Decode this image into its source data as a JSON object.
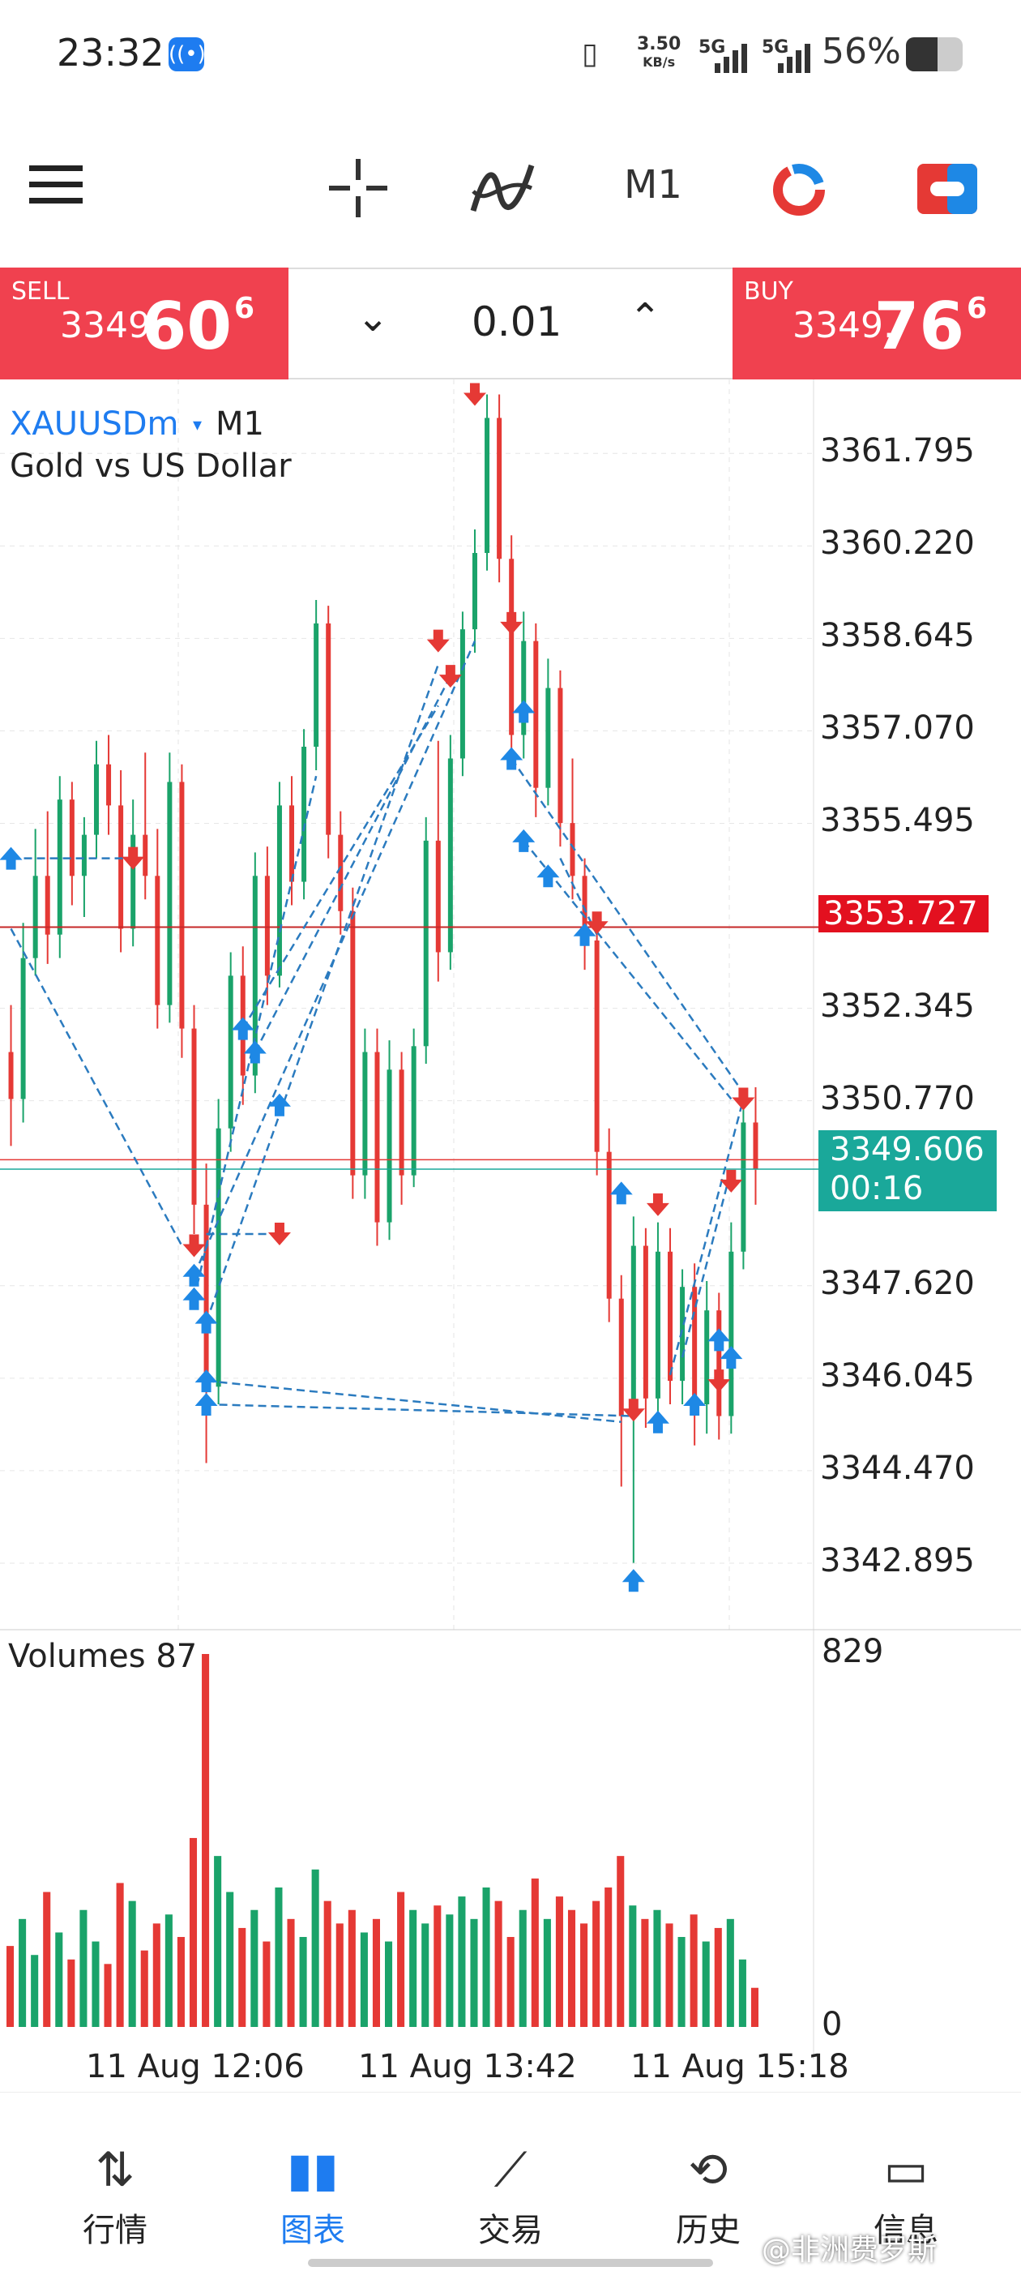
{
  "status_bar": {
    "time": "23:32",
    "net_speed_value": "3.50",
    "net_speed_unit": "KB/s",
    "sim1": "5G",
    "sim2": "5G",
    "battery": "56%",
    "battery_level": 0.56,
    "icons": [
      "live-broadcast-icon",
      "vibrate-icon",
      "signal-icon",
      "battery-icon"
    ]
  },
  "toolbar": {
    "icons": [
      "menu-icon",
      "crosshair-icon",
      "indicators-icon",
      "timeframe",
      "one-click-trading-icon",
      "switch-icon"
    ],
    "timeframe": "M1"
  },
  "trade_panel": {
    "sell_label": "SELL",
    "sell_price_main": "3349.",
    "sell_price_big": "60",
    "sell_price_sup": "6",
    "buy_label": "BUY",
    "buy_price_main": "3349.",
    "buy_price_big": "76",
    "buy_price_sup": "6",
    "lot": "0.01",
    "lot_decrease": "⌄",
    "lot_increase": "⌃"
  },
  "chart": {
    "symbol": "XAUUSDm",
    "symbol_arrow": "▾",
    "timeframe": "M1",
    "description": "Gold vs US Dollar",
    "price_ticks": [
      "3361.795",
      "3360.220",
      "3358.645",
      "3357.070",
      "3355.495",
      "3352.345",
      "3350.770",
      "3347.620",
      "3346.045",
      "3344.470",
      "3342.895"
    ],
    "crosshair_price": "3353.727",
    "bid_price": "3349.606",
    "bar_countdown": "00:16",
    "volumes_label": "Volumes 87",
    "volume_max": "829",
    "volume_min": "0",
    "time_labels": [
      "11 Aug 12:06",
      "11 Aug 13:42",
      "11 Aug 15:18"
    ],
    "colors": {
      "up": "#1aa36a",
      "down": "#e53935",
      "buy_marker": "#1e88e5",
      "sell_marker": "#e53935",
      "trend": "#2b7bbf",
      "bid_line": "#1aa89a",
      "cross_line": "#c62828"
    }
  },
  "chart_data": {
    "type": "candlestick",
    "title": "XAUUSDm, M1",
    "description": "Gold vs US Dollar",
    "ylim": [
      3341.9,
      3363.0
    ],
    "yticks": [
      3361.795,
      3360.22,
      3358.645,
      3357.07,
      3355.495,
      3352.345,
      3350.77,
      3347.62,
      3346.045,
      3344.47,
      3342.895
    ],
    "x_labels": [
      "11 Aug 12:06",
      "11 Aug 13:42",
      "11 Aug 15:18"
    ],
    "crosshair_price": 3353.727,
    "bid": 3349.606,
    "ask": 3349.766,
    "volume_range": [
      0,
      829
    ],
    "volume_current": 87,
    "candles": [
      [
        3351.6,
        3352.4,
        3350.0,
        3350.8
      ],
      [
        3350.8,
        3353.8,
        3350.4,
        3353.2
      ],
      [
        3353.2,
        3355.4,
        3352.9,
        3354.6
      ],
      [
        3354.6,
        3355.7,
        3353.1,
        3353.6
      ],
      [
        3353.6,
        3356.3,
        3353.2,
        3355.9
      ],
      [
        3355.9,
        3356.2,
        3354.1,
        3354.6
      ],
      [
        3354.6,
        3355.6,
        3353.9,
        3355.3
      ],
      [
        3355.3,
        3356.9,
        3354.9,
        3356.5
      ],
      [
        3356.5,
        3357.0,
        3355.3,
        3355.8
      ],
      [
        3355.8,
        3356.4,
        3353.3,
        3353.7
      ],
      [
        3353.7,
        3355.9,
        3353.4,
        3355.3
      ],
      [
        3355.3,
        3356.7,
        3354.2,
        3354.6
      ],
      [
        3354.6,
        3355.4,
        3352.0,
        3352.4
      ],
      [
        3352.4,
        3356.7,
        3352.1,
        3356.2
      ],
      [
        3356.2,
        3356.5,
        3351.5,
        3352.0
      ],
      [
        3352.0,
        3352.4,
        3348.5,
        3349.0
      ],
      [
        3349.0,
        3349.7,
        3344.6,
        3345.9
      ],
      [
        3345.9,
        3350.8,
        3345.6,
        3350.3
      ],
      [
        3350.3,
        3353.3,
        3349.9,
        3352.9
      ],
      [
        3352.9,
        3353.4,
        3350.7,
        3351.2
      ],
      [
        3351.2,
        3355.0,
        3350.9,
        3354.6
      ],
      [
        3354.6,
        3355.1,
        3352.4,
        3352.9
      ],
      [
        3352.9,
        3356.2,
        3352.7,
        3355.8
      ],
      [
        3355.8,
        3356.3,
        3354.1,
        3354.5
      ],
      [
        3354.5,
        3357.1,
        3354.2,
        3356.8
      ],
      [
        3356.8,
        3359.3,
        3356.4,
        3358.9
      ],
      [
        3358.9,
        3359.2,
        3354.9,
        3355.3
      ],
      [
        3355.3,
        3355.7,
        3353.6,
        3354.0
      ],
      [
        3354.0,
        3354.4,
        3349.1,
        3349.5
      ],
      [
        3349.5,
        3352.0,
        3349.1,
        3351.6
      ],
      [
        3351.6,
        3352.0,
        3348.3,
        3348.7
      ],
      [
        3348.7,
        3351.8,
        3348.4,
        3351.3
      ],
      [
        3351.3,
        3351.6,
        3349.0,
        3349.5
      ],
      [
        3349.5,
        3352.0,
        3349.3,
        3351.7
      ],
      [
        3351.7,
        3355.6,
        3351.4,
        3355.2
      ],
      [
        3355.2,
        3356.9,
        3352.8,
        3353.3
      ],
      [
        3353.3,
        3357.0,
        3353.0,
        3356.6
      ],
      [
        3356.6,
        3359.1,
        3356.3,
        3358.8
      ],
      [
        3358.8,
        3360.5,
        3358.4,
        3360.1
      ],
      [
        3360.1,
        3362.8,
        3359.8,
        3362.4
      ],
      [
        3362.4,
        3362.8,
        3359.6,
        3360.0
      ],
      [
        3360.0,
        3360.4,
        3356.5,
        3357.0
      ],
      [
        3357.0,
        3359.1,
        3356.6,
        3358.6
      ],
      [
        3358.6,
        3358.9,
        3355.6,
        3356.1
      ],
      [
        3356.1,
        3358.3,
        3355.8,
        3357.8
      ],
      [
        3357.8,
        3358.1,
        3355.1,
        3355.5
      ],
      [
        3355.5,
        3356.6,
        3354.2,
        3354.6
      ],
      [
        3354.6,
        3354.9,
        3353.0,
        3353.5
      ],
      [
        3353.5,
        3353.8,
        3349.5,
        3349.9
      ],
      [
        3349.9,
        3350.3,
        3347.0,
        3347.4
      ],
      [
        3347.4,
        3347.8,
        3344.2,
        3345.4
      ],
      [
        3345.4,
        3348.8,
        3342.9,
        3348.3
      ],
      [
        3348.3,
        3348.6,
        3345.2,
        3345.7
      ],
      [
        3345.7,
        3348.7,
        3345.3,
        3348.2
      ],
      [
        3348.2,
        3348.6,
        3345.6,
        3346.0
      ],
      [
        3346.0,
        3347.9,
        3345.6,
        3347.6
      ],
      [
        3347.6,
        3348.0,
        3344.9,
        3345.6
      ],
      [
        3345.6,
        3347.7,
        3345.1,
        3347.2
      ],
      [
        3347.2,
        3347.5,
        3345.0,
        3345.4
      ],
      [
        3345.4,
        3348.7,
        3345.1,
        3348.2
      ],
      [
        3348.2,
        3350.9,
        3347.9,
        3350.4
      ],
      [
        3350.4,
        3351.0,
        3349.0,
        3349.6
      ]
    ],
    "volumes": [
      180,
      240,
      160,
      300,
      210,
      150,
      260,
      190,
      140,
      320,
      280,
      170,
      230,
      250,
      200,
      420,
      829,
      380,
      300,
      220,
      260,
      190,
      310,
      240,
      200,
      350,
      280,
      230,
      260,
      210,
      240,
      190,
      300,
      260,
      230,
      270,
      250,
      290,
      240,
      310,
      280,
      200,
      260,
      330,
      240,
      290,
      260,
      230,
      280,
      310,
      380,
      270,
      240,
      260,
      230,
      200,
      250,
      190,
      220,
      240,
      150,
      87
    ]
  },
  "bottom_nav": {
    "items": [
      {
        "icon": "quotes-icon",
        "glyph": "⇅",
        "label": "行情"
      },
      {
        "icon": "chart-icon",
        "glyph": "▮▮",
        "label": "图表"
      },
      {
        "icon": "trade-icon",
        "glyph": "⟋",
        "label": "交易"
      },
      {
        "icon": "history-icon",
        "glyph": "⟲",
        "label": "历史"
      },
      {
        "icon": "messages-icon",
        "glyph": "▭",
        "label": "信息"
      }
    ],
    "watermark": "@非洲费罗斯"
  }
}
